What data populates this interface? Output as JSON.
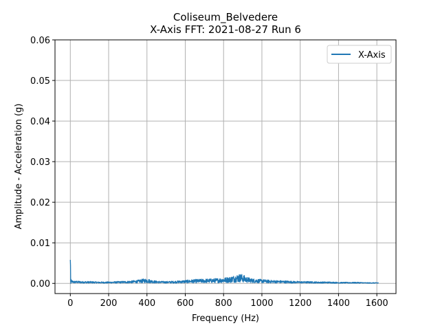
{
  "chart_data": {
    "type": "line",
    "title": "Coliseum_Belvedere",
    "subtitle": "X-Axis FFT: 2021-08-27 Run 6",
    "xlabel": "Frequency (Hz)",
    "ylabel": "Amplitude - Acceleration (g)",
    "xlim": [
      -80,
      1700
    ],
    "ylim": [
      -0.0025,
      0.06
    ],
    "xticks": [
      0,
      200,
      400,
      600,
      800,
      1000,
      1200,
      1400,
      1600
    ],
    "yticks": [
      0.0,
      0.01,
      0.02,
      0.03,
      0.04,
      0.05,
      0.06
    ],
    "xtick_labels": [
      "0",
      "200",
      "400",
      "600",
      "800",
      "1000",
      "1200",
      "1400",
      "1600"
    ],
    "ytick_labels": [
      "0.00",
      "0.01",
      "0.02",
      "0.03",
      "0.04",
      "0.05",
      "0.06"
    ],
    "grid": true,
    "legend_position": "top-right",
    "series": [
      {
        "name": "X-Axis",
        "color": "#1f77b4",
        "x": [
          0,
          1,
          2,
          5,
          10,
          20,
          40,
          60,
          80,
          100,
          150,
          200,
          250,
          300,
          350,
          380,
          400,
          420,
          450,
          500,
          550,
          600,
          650,
          700,
          750,
          800,
          830,
          850,
          870,
          880,
          890,
          900,
          920,
          950,
          1000,
          1050,
          1100,
          1150,
          1200,
          1250,
          1300,
          1350,
          1400,
          1450,
          1500,
          1550,
          1600,
          1610
        ],
        "y": [
          0.0058,
          0.0045,
          0.0012,
          0.0009,
          0.0007,
          0.0006,
          0.0006,
          0.0005,
          0.0005,
          0.0005,
          0.0004,
          0.0004,
          0.0005,
          0.0006,
          0.0008,
          0.0011,
          0.0012,
          0.0009,
          0.0006,
          0.0005,
          0.0006,
          0.0008,
          0.001,
          0.0011,
          0.0012,
          0.0014,
          0.0016,
          0.0019,
          0.0022,
          0.0023,
          0.0024,
          0.0022,
          0.0016,
          0.0012,
          0.001,
          0.0008,
          0.0007,
          0.0006,
          0.0005,
          0.0005,
          0.0004,
          0.0004,
          0.0003,
          0.0003,
          0.0003,
          0.0002,
          0.0002,
          0.0002
        ]
      }
    ]
  }
}
